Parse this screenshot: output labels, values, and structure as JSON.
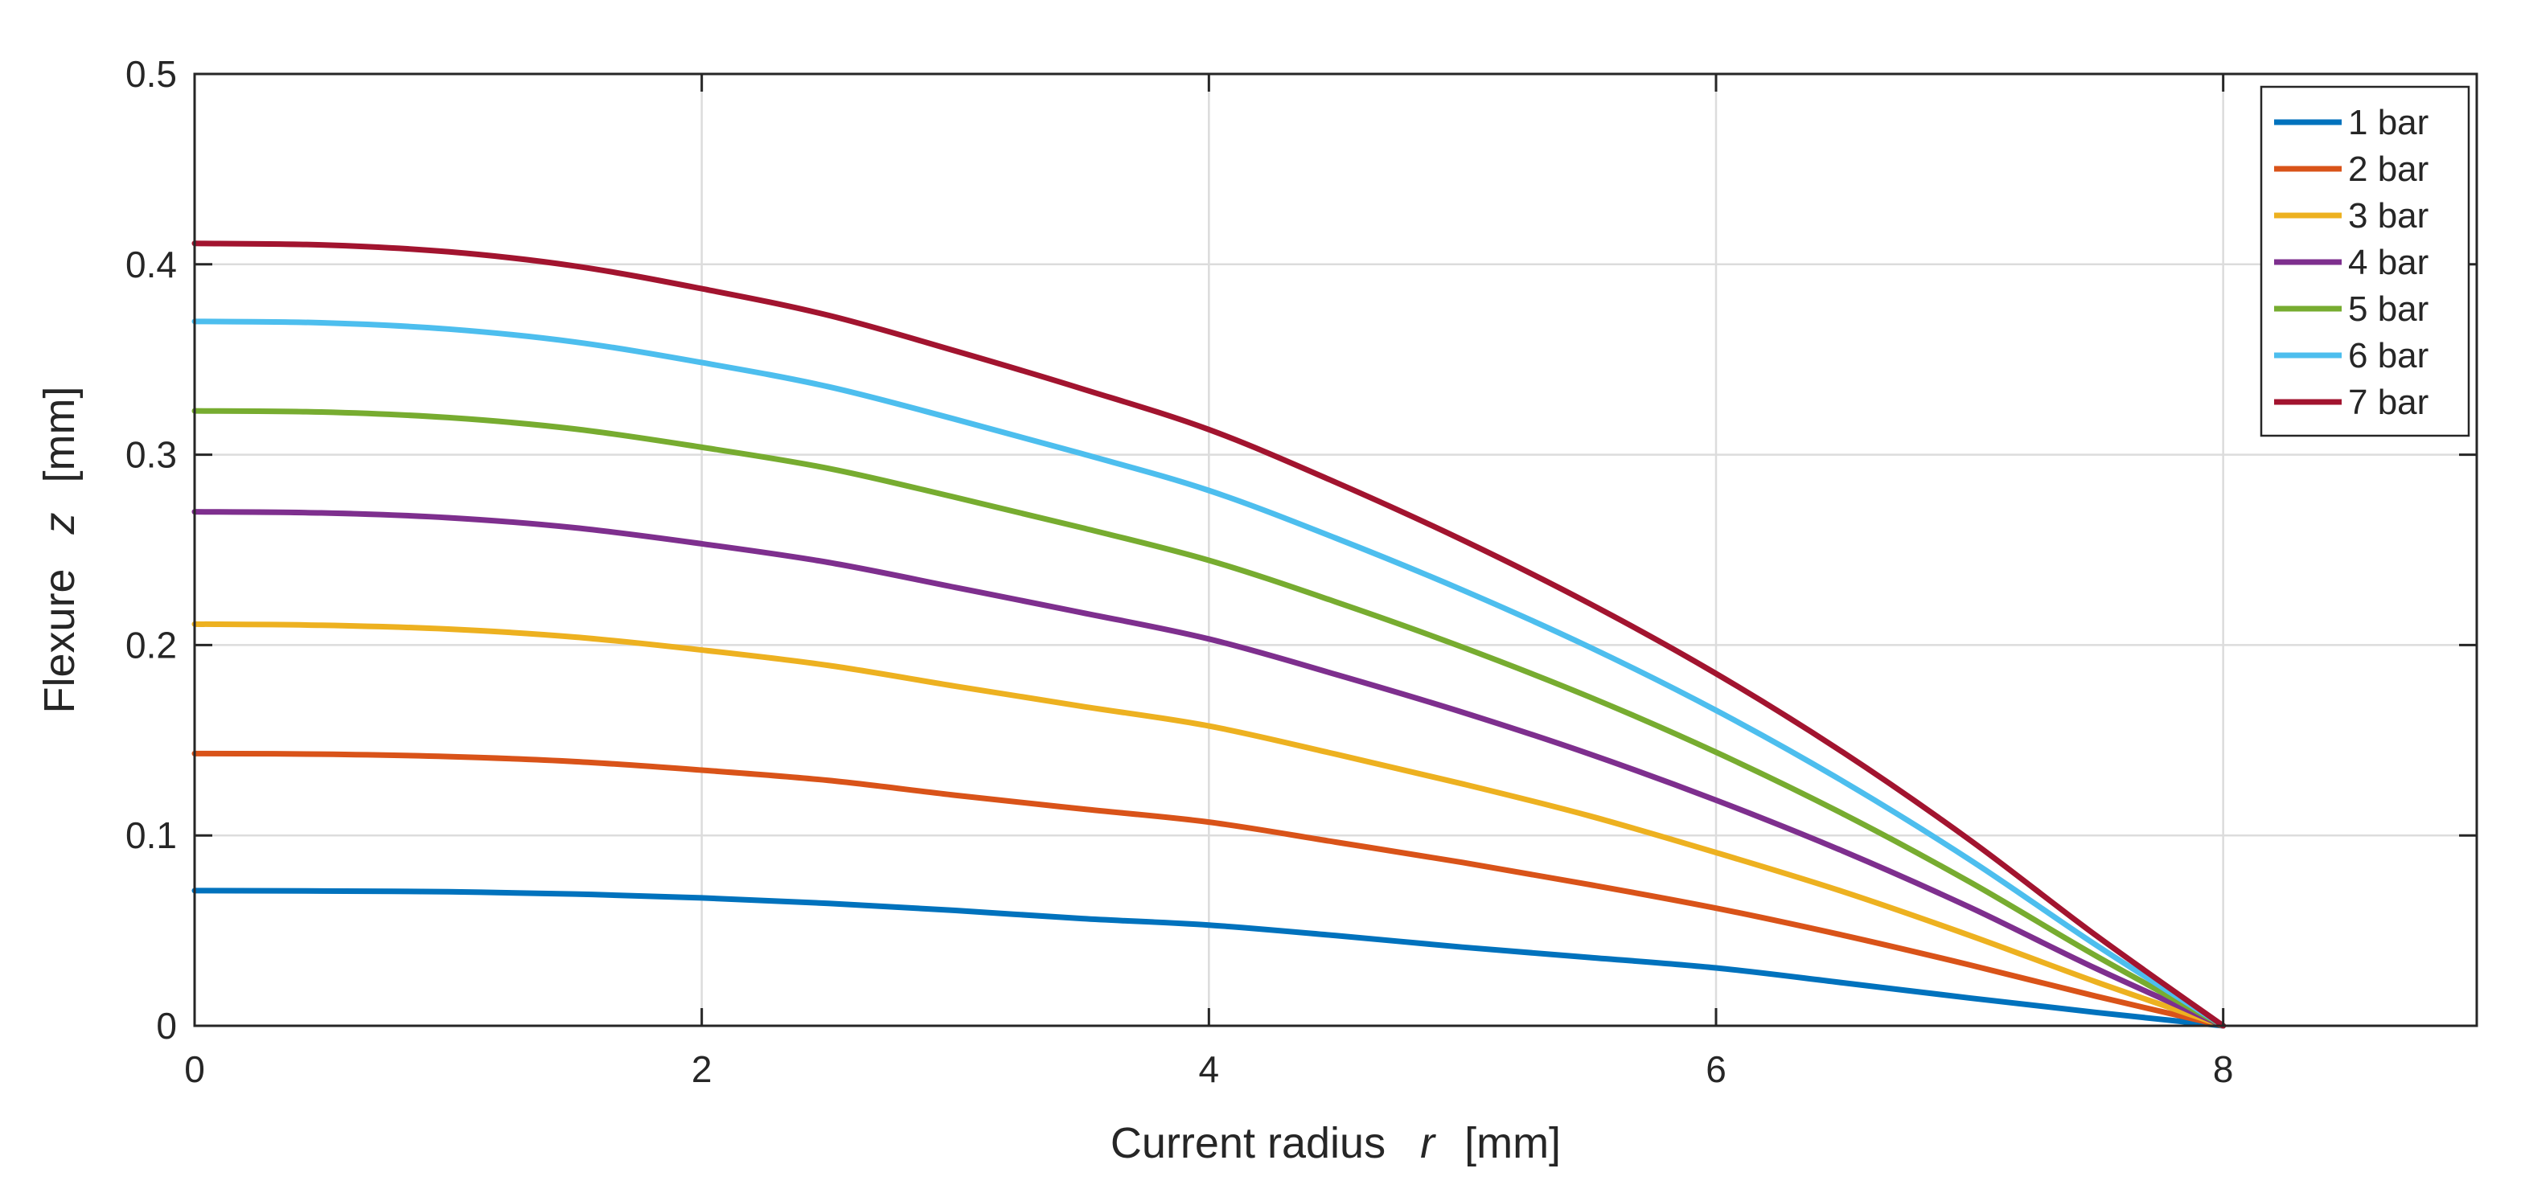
{
  "chart_data": {
    "type": "line",
    "title": "",
    "xlabel": {
      "text": "Current radius",
      "variable": "r",
      "unit": "[mm]"
    },
    "ylabel": {
      "text": "Flexure",
      "variable": "z",
      "unit": "[mm]"
    },
    "xlim": [
      0,
      9
    ],
    "ylim": [
      0,
      0.5
    ],
    "xticks": [
      0,
      2,
      4,
      6,
      8
    ],
    "yticks": [
      0,
      0.1,
      0.2,
      0.3,
      0.4,
      0.5
    ],
    "xtick_labels": [
      "0",
      "2",
      "4",
      "6",
      "8"
    ],
    "ytick_labels": [
      "0",
      "0.1",
      "0.2",
      "0.3",
      "0.4",
      "0.5"
    ],
    "grid": true,
    "legend_position": "top-right",
    "x": [
      0,
      0.5,
      1,
      1.5,
      2,
      2.5,
      3,
      3.5,
      4,
      4.5,
      5,
      5.5,
      6,
      6.5,
      7,
      7.5,
      8
    ],
    "series": [
      {
        "name": "1 bar",
        "color": "#0072BD",
        "values": [
          0.071,
          0.0708,
          0.0704,
          0.0692,
          0.0672,
          0.0643,
          0.0606,
          0.0563,
          0.0529,
          0.0474,
          0.0413,
          0.0359,
          0.0304,
          0.0226,
          0.0146,
          0.007,
          0
        ]
      },
      {
        "name": "2 bar",
        "color": "#D95319",
        "values": [
          0.143,
          0.1427,
          0.1414,
          0.1388,
          0.1343,
          0.1289,
          0.1211,
          0.1139,
          0.107,
          0.0965,
          0.0858,
          0.0742,
          0.0618,
          0.0476,
          0.032,
          0.0155,
          0
        ]
      },
      {
        "name": "3 bar",
        "color": "#EDB120",
        "values": [
          0.211,
          0.2104,
          0.2084,
          0.2042,
          0.1974,
          0.1893,
          0.1784,
          0.1678,
          0.1575,
          0.1427,
          0.1271,
          0.1103,
          0.091,
          0.0705,
          0.0475,
          0.023,
          0
        ]
      },
      {
        "name": "4 bar",
        "color": "#7E2F8E",
        "values": [
          0.27,
          0.2694,
          0.2669,
          0.2616,
          0.2532,
          0.2434,
          0.2303,
          0.217,
          0.2032,
          0.1846,
          0.1647,
          0.1428,
          0.1185,
          0.0918,
          0.0623,
          0.03,
          0
        ]
      },
      {
        "name": "5 bar",
        "color": "#77AC30",
        "values": [
          0.323,
          0.3224,
          0.3195,
          0.3135,
          0.3039,
          0.2928,
          0.2776,
          0.2616,
          0.2445,
          0.2227,
          0.1989,
          0.1728,
          0.1437,
          0.1114,
          0.0756,
          0.0366,
          0
        ]
      },
      {
        "name": "6 bar",
        "color": "#4DBEEE",
        "values": [
          0.37,
          0.3693,
          0.366,
          0.3592,
          0.3484,
          0.3357,
          0.3186,
          0.3005,
          0.2812,
          0.2562,
          0.2289,
          0.199,
          0.1657,
          0.1285,
          0.0873,
          0.0423,
          0
        ]
      },
      {
        "name": "7 bar",
        "color": "#A2142F",
        "values": [
          0.411,
          0.4102,
          0.4066,
          0.3991,
          0.3872,
          0.3732,
          0.3545,
          0.3346,
          0.3132,
          0.2855,
          0.2552,
          0.2219,
          0.185,
          0.1437,
          0.0977,
          0.0473,
          0
        ]
      }
    ]
  }
}
